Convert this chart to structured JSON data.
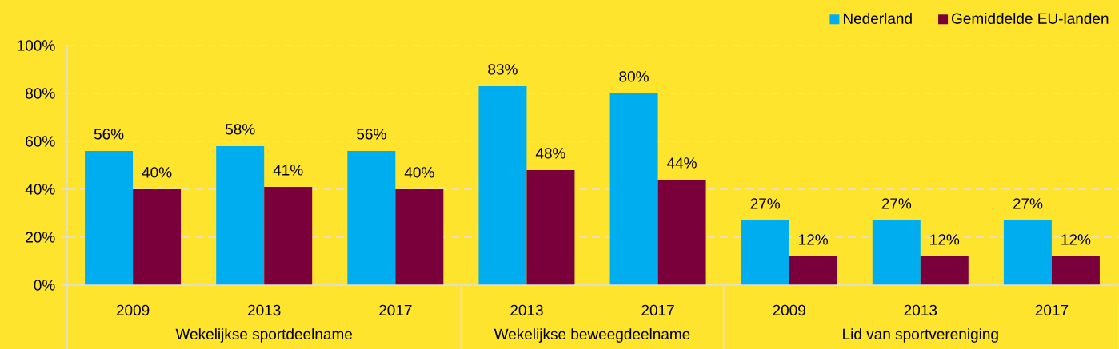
{
  "chart_data": {
    "type": "bar",
    "categories": [
      "2009",
      "2013",
      "2017",
      "2013",
      "2017",
      "2009",
      "2013",
      "2017"
    ],
    "series": [
      {
        "name": "Nederland",
        "color": "#00aeef",
        "values": [
          56,
          58,
          56,
          83,
          80,
          27,
          27,
          27
        ],
        "value_labels": [
          "56%",
          "58%",
          "56%",
          "83%",
          "80%",
          "27%",
          "27%",
          "27%"
        ]
      },
      {
        "name": "Gemiddelde EU-landen",
        "color": "#7a003c",
        "values": [
          40,
          41,
          40,
          48,
          44,
          12,
          12,
          12
        ],
        "value_labels": [
          "40%",
          "41%",
          "40%",
          "48%",
          "44%",
          "12%",
          "12%",
          "12%"
        ]
      }
    ],
    "ylim": [
      0,
      100
    ],
    "yticks": [
      {
        "value": 0,
        "label": "0%"
      },
      {
        "value": 20,
        "label": "20%"
      },
      {
        "value": 40,
        "label": "40%"
      },
      {
        "value": 60,
        "label": "60%"
      },
      {
        "value": 80,
        "label": "80%"
      },
      {
        "value": 100,
        "label": "100%"
      }
    ],
    "grid": "y",
    "legend": "top right",
    "annotations": [
      "Wekelijkse sportdeelname",
      "Wekelijkse beweegdeelname",
      "Lid van sportvereniging"
    ]
  }
}
